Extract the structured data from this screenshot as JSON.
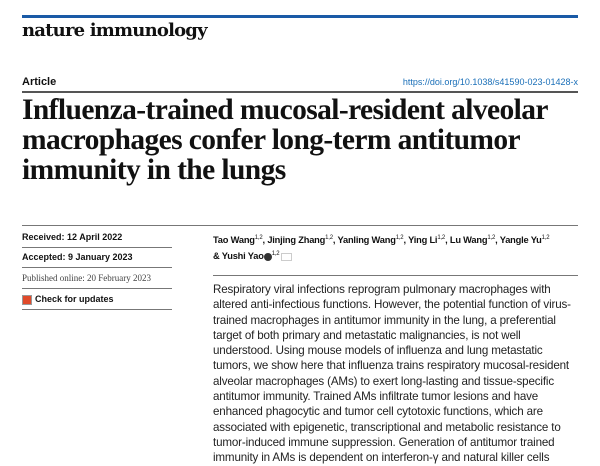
{
  "journal": "nature immunology",
  "article_type": "Article",
  "doi": "https://doi.org/10.1038/s41590-023-01428-x",
  "title": "Influenza-trained mucosal-resident alveolar macrophages confer long-term antitumor immunity in the lungs",
  "received": "Received: 12 April 2022",
  "accepted": "Accepted: 9 January 2023",
  "published": "Published online: 20 February 2023",
  "check_updates": "Check for updates",
  "authors": [
    {
      "name": "Tao Wang",
      "aff": "1,2",
      "sep": ", "
    },
    {
      "name": "Jinjing Zhang",
      "aff": "1,2",
      "sep": ", "
    },
    {
      "name": "Yanling Wang",
      "aff": "1,2",
      "sep": ", "
    },
    {
      "name": "Ying Li",
      "aff": "1,2",
      "sep": ", "
    },
    {
      "name": "Lu Wang",
      "aff": "1,2",
      "sep": ", "
    },
    {
      "name": "Yangle Yu",
      "aff": "1,2",
      "sep": " "
    },
    {
      "name": "& Yushi Yao",
      "aff": "1,2",
      "sep": ""
    }
  ],
  "abstract": "Respiratory viral infections reprogram pulmonary macrophages with altered anti-infectious functions. However, the potential function of virus-trained macrophages in antitumor immunity in the lung, a preferential target of both primary and metastatic malignancies, is not well understood. Using mouse models of influenza and lung metastatic tumors, we show here that influenza trains respiratory mucosal-resident alveolar macrophages (AMs) to exert long-lasting and tissue-specific antitumor immunity. Trained AMs infiltrate tumor lesions and have enhanced phagocytic and tumor cell cytotoxic functions, which are associated with epigenetic, transcriptional and metabolic resistance to tumor-induced immune suppression. Generation of antitumor trained immunity in AMs is dependent on interferon-γ and natural killer cells",
  "colors": {
    "accent": "#1a5aa6",
    "link": "#1a6fb8"
  }
}
